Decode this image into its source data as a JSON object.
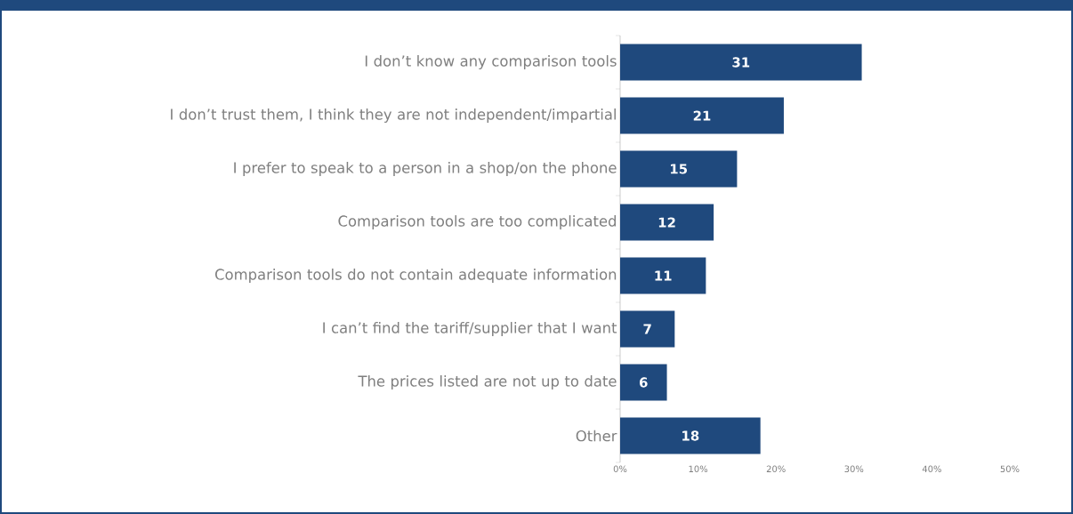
{
  "chart_data": {
    "type": "bar",
    "orientation": "horizontal",
    "categories": [
      "I don’t know any comparison tools",
      "I don’t trust them, I think they are not independent/impartial",
      "I prefer to speak to a person in a shop/on the phone",
      "Comparison tools are too complicated",
      "Comparison tools do not contain adequate information",
      "I can’t find the tariff/supplier that I want",
      "The prices listed are not up to date",
      "Other"
    ],
    "values": [
      31,
      21,
      15,
      12,
      11,
      7,
      6,
      18
    ],
    "color": "#1f497d",
    "xlim": [
      0,
      50
    ],
    "xticks": [
      {
        "value": 0,
        "label": "0%"
      },
      {
        "value": 10,
        "label": "10%"
      },
      {
        "value": 20,
        "label": "20%"
      },
      {
        "value": 30,
        "label": "30%"
      },
      {
        "value": 40,
        "label": "40%"
      },
      {
        "value": 50,
        "label": "50%"
      }
    ],
    "data_labels": true
  }
}
